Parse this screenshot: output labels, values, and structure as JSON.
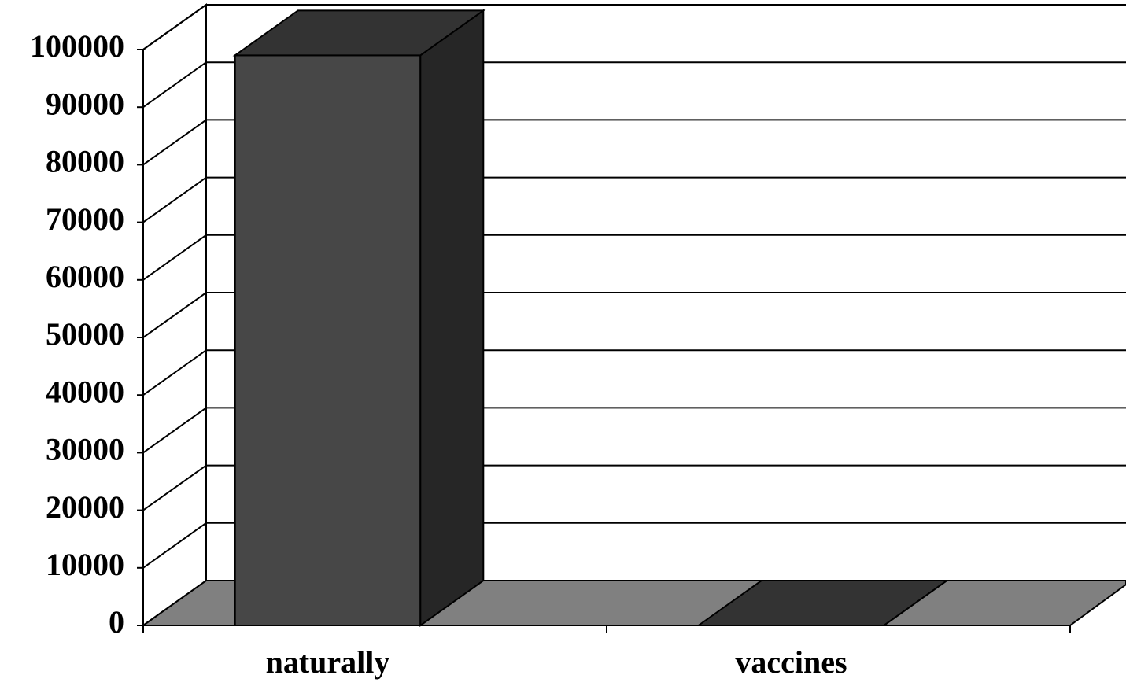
{
  "chart_data": {
    "type": "bar3d",
    "categories": [
      "naturally",
      "vaccines"
    ],
    "values": [
      99000,
      0
    ],
    "colors": {
      "front": "#474747",
      "side": "#262626",
      "top": "#333333",
      "floor": "#808080"
    },
    "ylim": [
      0,
      100000
    ],
    "yticks": [
      0,
      10000,
      20000,
      30000,
      40000,
      50000,
      60000,
      70000,
      80000,
      90000,
      100000
    ],
    "grid": true
  }
}
